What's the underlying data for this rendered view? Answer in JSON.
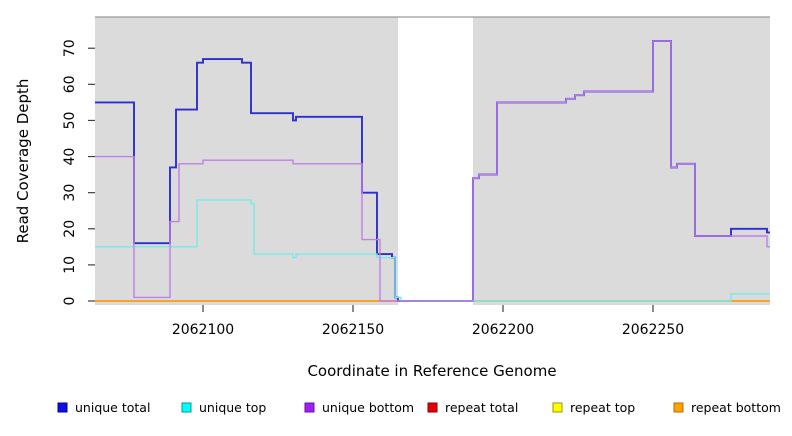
{
  "chart_data": {
    "type": "line",
    "subtype": "step-coverage-plot",
    "title": "",
    "xlabel": "Coordinate in Reference Genome",
    "ylabel": "Read Coverage Depth",
    "xlim": [
      2062064,
      2062289
    ],
    "ylim": [
      0,
      78
    ],
    "x_ticks": [
      2062100,
      2062150,
      2062200,
      2062250
    ],
    "y_ticks": [
      0,
      10,
      20,
      30,
      40,
      50,
      60,
      70
    ],
    "grid": false,
    "plot_background": "#dbdbdb",
    "page_background": "#ffffff",
    "border_color": "#9a9a9a",
    "tick_color": "#404040",
    "gap_region": {
      "from": 2062165,
      "to": 2062190,
      "color": "#ffffff"
    },
    "series": [
      {
        "name": "repeat total",
        "color": "#dd2222",
        "width": 1.4,
        "points": [
          [
            2062064,
            0
          ]
        ]
      },
      {
        "name": "repeat top",
        "color": "#f2f20c",
        "width": 1.4,
        "points": [
          [
            2062064,
            0
          ]
        ]
      },
      {
        "name": "repeat bottom",
        "color": "#ff9d20",
        "width": 1.6,
        "points": [
          [
            2062064,
            0
          ]
        ]
      },
      {
        "name": "unique total",
        "color": "#2d2dd6",
        "width": 1.9,
        "points": [
          [
            2062064,
            55
          ],
          [
            2062077,
            16
          ],
          [
            2062089,
            37
          ],
          [
            2062091,
            53
          ],
          [
            2062098,
            66
          ],
          [
            2062100,
            67
          ],
          [
            2062113,
            66
          ],
          [
            2062116,
            52
          ],
          [
            2062130,
            50
          ],
          [
            2062131,
            51
          ],
          [
            2062153,
            30
          ],
          [
            2062158,
            13
          ],
          [
            2062163,
            12
          ],
          [
            2062164,
            1
          ],
          [
            2062165,
            0
          ],
          [
            2062190,
            34
          ],
          [
            2062192,
            35
          ],
          [
            2062198,
            55
          ],
          [
            2062221,
            56
          ],
          [
            2062224,
            57
          ],
          [
            2062227,
            58
          ],
          [
            2062250,
            72
          ],
          [
            2062256,
            37
          ],
          [
            2062258,
            38
          ],
          [
            2062264,
            18
          ],
          [
            2062276,
            20
          ],
          [
            2062288,
            19
          ]
        ]
      },
      {
        "name": "unique top",
        "color": "#76ebeb",
        "width": 1.4,
        "points": [
          [
            2062064,
            15
          ],
          [
            2062098,
            28
          ],
          [
            2062116,
            27
          ],
          [
            2062117,
            13
          ],
          [
            2062130,
            12
          ],
          [
            2062131,
            13
          ],
          [
            2062158,
            12
          ],
          [
            2062164,
            1
          ],
          [
            2062166,
            0
          ],
          [
            2062276,
            2
          ]
        ]
      },
      {
        "name": "unique bottom",
        "color": "#c180e8",
        "width": 1.4,
        "points": [
          [
            2062064,
            40
          ],
          [
            2062077,
            1
          ],
          [
            2062089,
            22
          ],
          [
            2062092,
            38
          ],
          [
            2062100,
            39
          ],
          [
            2062130,
            38
          ],
          [
            2062153,
            17
          ],
          [
            2062159,
            0
          ],
          [
            2062190,
            34
          ],
          [
            2062192,
            35
          ],
          [
            2062198,
            55
          ],
          [
            2062221,
            56
          ],
          [
            2062224,
            57
          ],
          [
            2062227,
            58
          ],
          [
            2062250,
            72
          ],
          [
            2062256,
            37
          ],
          [
            2062258,
            38
          ],
          [
            2062264,
            18
          ],
          [
            2062288,
            15
          ]
        ]
      }
    ],
    "legend": {
      "position": "bottom",
      "items": [
        {
          "label": "unique total",
          "fill": "#0f0fe0",
          "border": "#000099"
        },
        {
          "label": "unique top",
          "fill": "#00ffff",
          "border": "#009999"
        },
        {
          "label": "unique bottom",
          "fill": "#a020f0",
          "border": "#6a0dad"
        },
        {
          "label": "repeat total",
          "fill": "#e60000",
          "border": "#8b0000"
        },
        {
          "label": "repeat top",
          "fill": "#ffff00",
          "border": "#999900"
        },
        {
          "label": "repeat bottom",
          "fill": "#ffa200",
          "border": "#b06f00"
        }
      ]
    }
  }
}
